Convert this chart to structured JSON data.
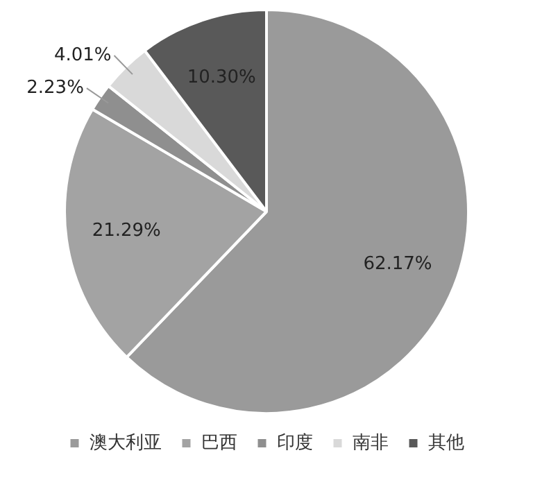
{
  "chart_data": {
    "type": "pie",
    "categories": [
      "澳大利亚",
      "巴西",
      "印度",
      "南非",
      "其他"
    ],
    "values": [
      62.17,
      21.29,
      2.23,
      4.01,
      10.3
    ],
    "colors": [
      "#9a9a9a",
      "#a3a3a3",
      "#8f8f8f",
      "#d9d9d9",
      "#595959"
    ],
    "value_labels": [
      "62.17%",
      "21.29%",
      "2.23%",
      "4.01%",
      "10.30%"
    ],
    "legend": "bottom"
  }
}
